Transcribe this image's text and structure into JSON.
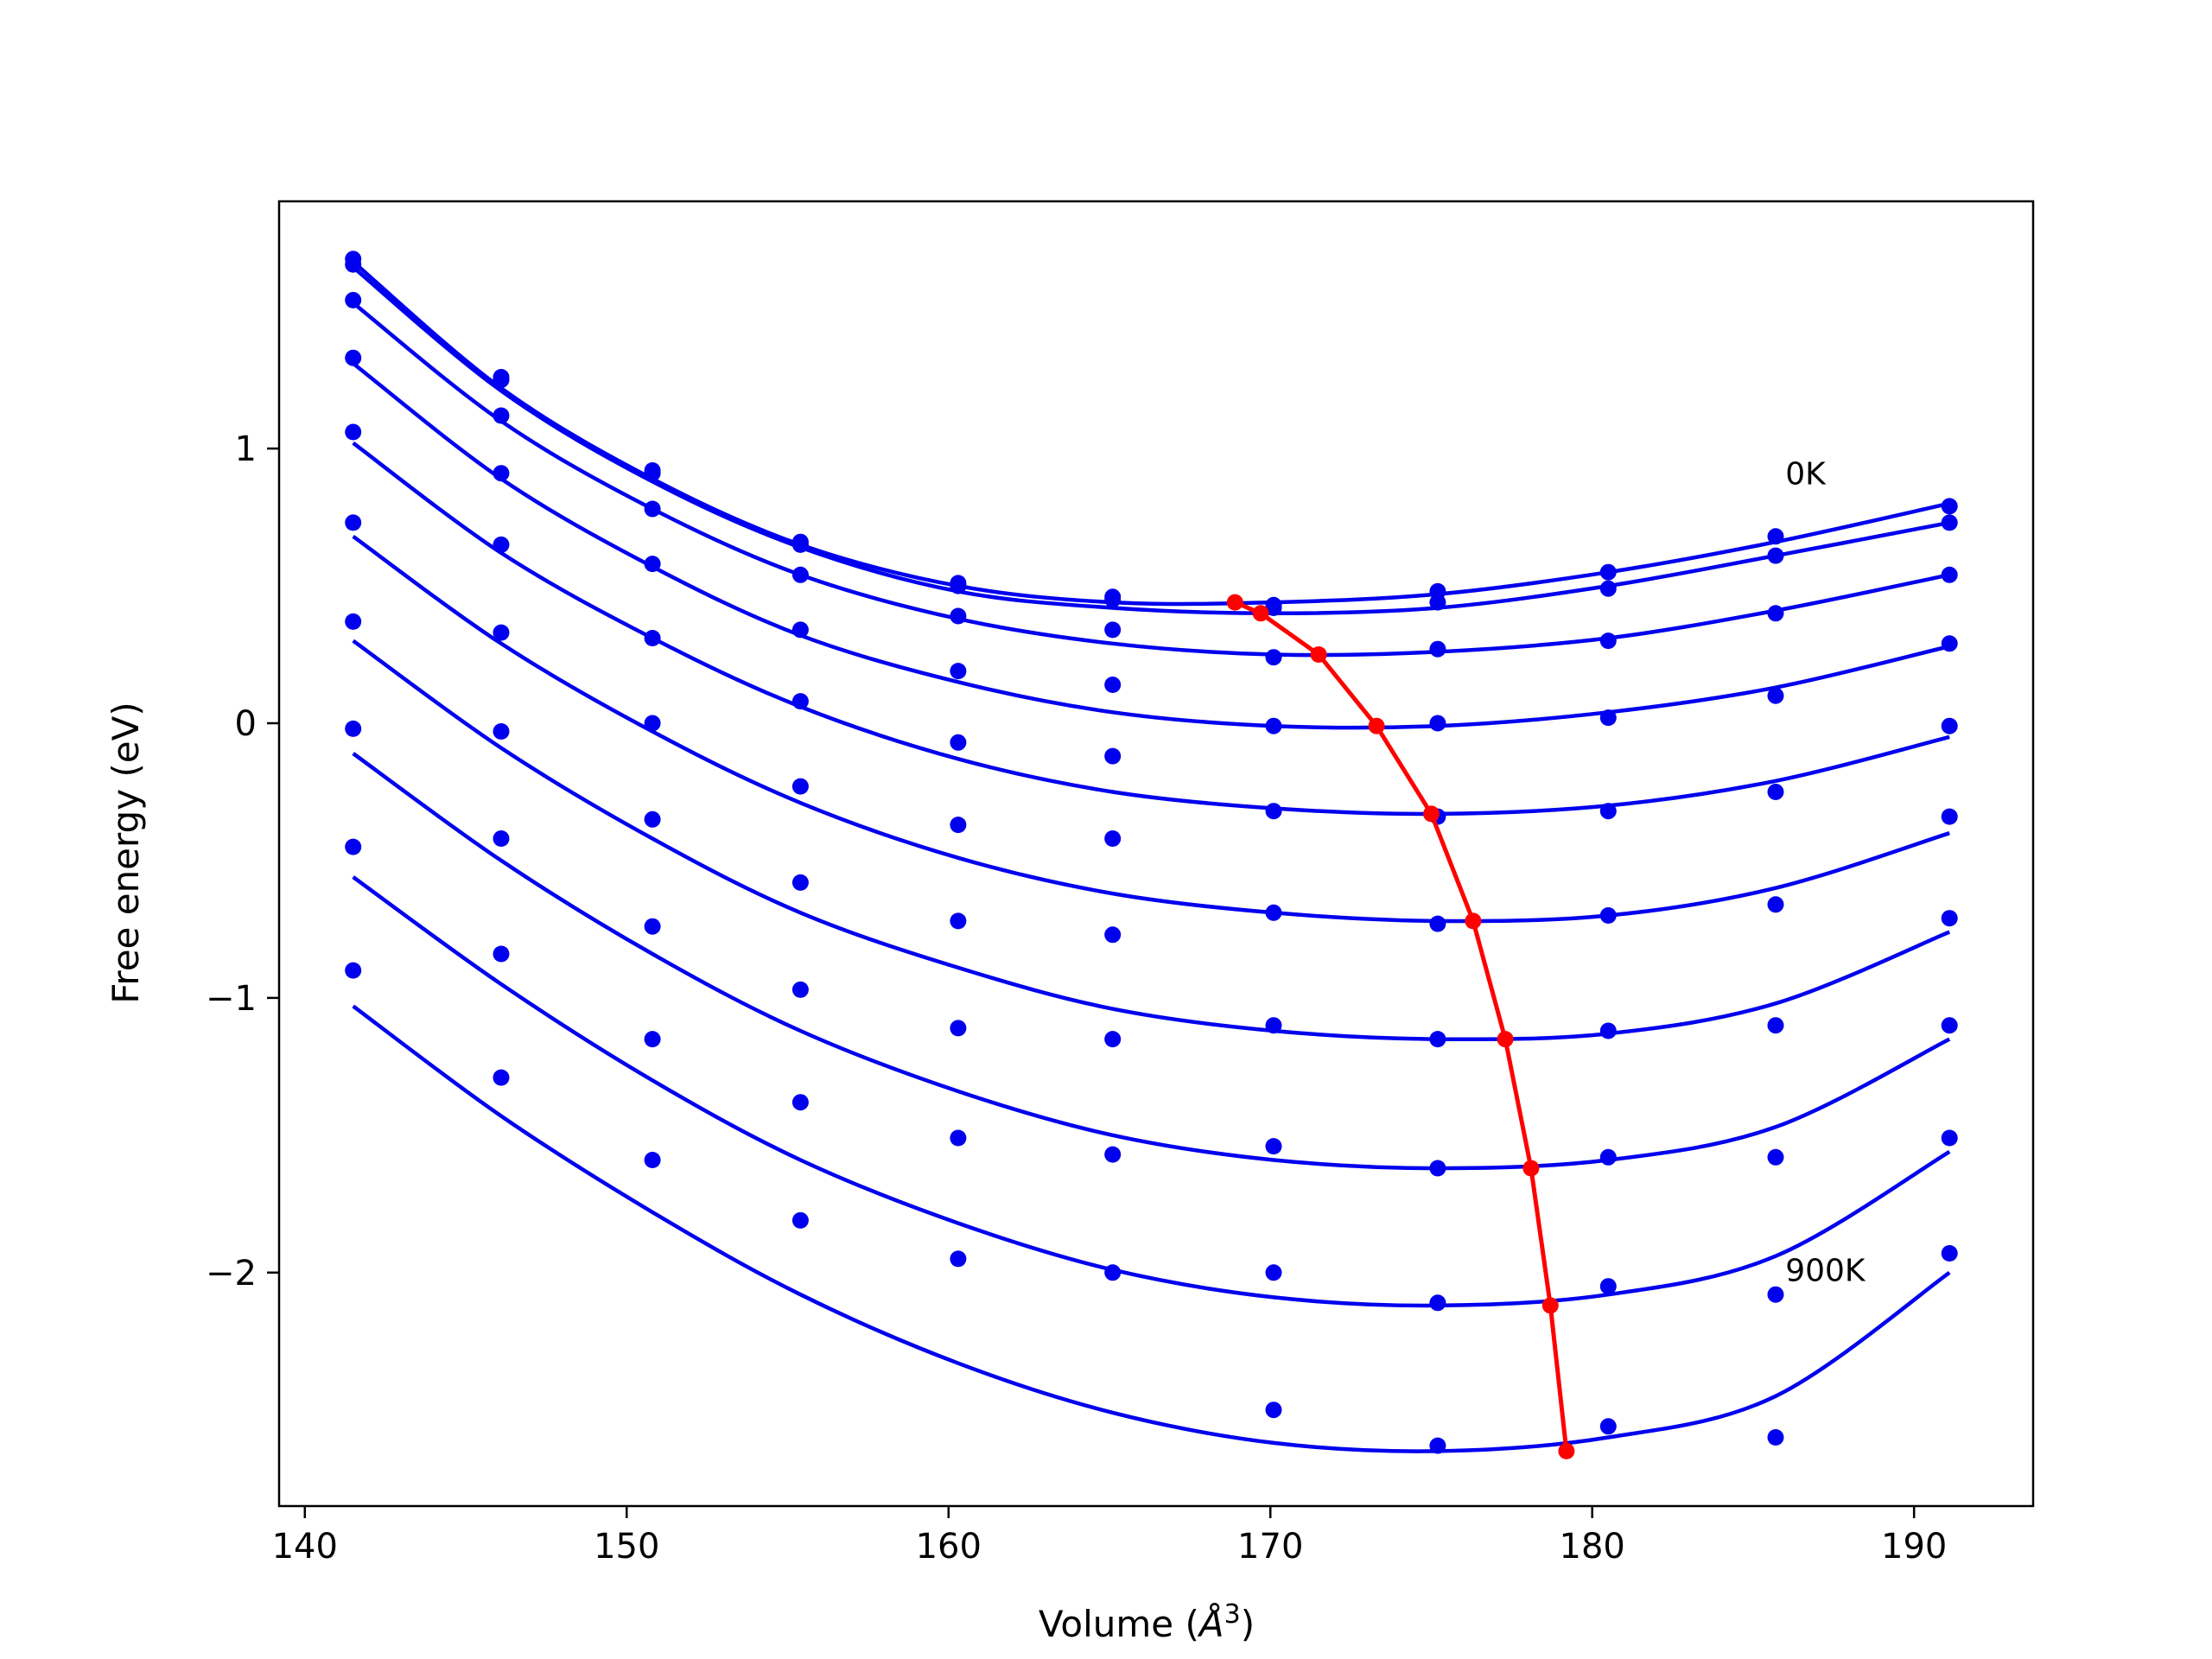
{
  "chart_data": {
    "type": "line",
    "xlabel": "Volume (",
    "xlabel_symbol": "Å",
    "xlabel_exp": "3",
    "xlabel_close": ")",
    "ylabel": "Free energy (eV)",
    "xlim": [
      139.2,
      193.7
    ],
    "ylim": [
      -2.85,
      1.9
    ],
    "xticks": [
      140,
      150,
      160,
      170,
      180,
      190
    ],
    "yticks": [
      -2,
      -1,
      0,
      1
    ],
    "ytick_labels": [
      "−2",
      "−1",
      "0",
      "1"
    ],
    "grid": false,
    "colors": {
      "series": "#0000ee",
      "minima": "#ff0000"
    },
    "annotations": [
      {
        "text": "0K",
        "x": 186.0,
        "y": 0.87
      },
      {
        "text": "900K",
        "x": 186.0,
        "y": -2.03
      }
    ],
    "volumes": [
      141.5,
      146.1,
      150.8,
      155.4,
      160.3,
      165.1,
      170.1,
      175.2,
      180.5,
      185.7,
      191.1
    ],
    "series": [
      {
        "points": [
          1.69,
          1.25,
          0.92,
          0.66,
          0.51,
          0.46,
          0.43,
          0.48,
          0.55,
          0.68,
          0.79
        ],
        "fit": [
          1.68,
          1.22,
          0.89,
          0.65,
          0.5,
          0.44,
          0.44,
          0.47,
          0.55,
          0.66,
          0.8
        ],
        "min": [
          168.9,
          0.44
        ]
      },
      {
        "points": [
          1.67,
          1.26,
          0.91,
          0.65,
          0.5,
          0.45,
          0.42,
          0.44,
          0.49,
          0.61,
          0.73
        ],
        "fit": [
          1.66,
          1.21,
          0.88,
          0.64,
          0.48,
          0.42,
          0.4,
          0.42,
          0.5,
          0.61,
          0.73
        ],
        "min": [
          169.7,
          0.4
        ]
      },
      {
        "points": [
          1.54,
          1.12,
          0.78,
          0.54,
          0.39,
          0.34,
          0.24,
          0.27,
          0.3,
          0.4,
          0.54
        ],
        "fit": [
          1.53,
          1.1,
          0.78,
          0.54,
          0.38,
          0.29,
          0.25,
          0.26,
          0.31,
          0.41,
          0.54
        ],
        "min": [
          171.5,
          0.25
        ]
      },
      {
        "points": [
          1.33,
          0.91,
          0.58,
          0.34,
          0.19,
          0.14,
          -0.01,
          0.0,
          0.02,
          0.1,
          0.29
        ],
        "fit": [
          1.31,
          0.89,
          0.57,
          0.32,
          0.15,
          0.04,
          -0.01,
          -0.01,
          0.04,
          0.13,
          0.28
        ],
        "min": [
          173.3,
          -0.01
        ]
      },
      {
        "points": [
          1.06,
          0.65,
          0.31,
          0.08,
          -0.07,
          -0.12,
          -0.32,
          -0.34,
          -0.32,
          -0.25,
          -0.01
        ],
        "fit": [
          1.02,
          0.62,
          0.31,
          0.06,
          -0.13,
          -0.25,
          -0.31,
          -0.33,
          -0.3,
          -0.21,
          -0.05
        ],
        "min": [
          175.0,
          -0.33
        ]
      },
      {
        "points": [
          0.73,
          0.33,
          0.0,
          -0.23,
          -0.37,
          -0.42,
          -0.69,
          -0.73,
          -0.7,
          -0.66,
          -0.34
        ],
        "fit": [
          0.68,
          0.29,
          -0.03,
          -0.29,
          -0.49,
          -0.62,
          -0.69,
          -0.72,
          -0.7,
          -0.6,
          -0.4
        ],
        "min": [
          176.3,
          -0.72
        ]
      },
      {
        "points": [
          0.37,
          -0.03,
          -0.35,
          -0.58,
          -0.72,
          -0.77,
          -1.1,
          -1.15,
          -1.12,
          -1.1,
          -0.71
        ],
        "fit": [
          0.3,
          -0.09,
          -0.42,
          -0.69,
          -0.89,
          -1.04,
          -1.12,
          -1.15,
          -1.13,
          -1.02,
          -0.76
        ],
        "min": [
          177.3,
          -1.15
        ]
      },
      {
        "points": [
          -0.02,
          -0.42,
          -0.74,
          -0.97,
          -1.11,
          -1.15,
          -1.54,
          -1.62,
          -1.58,
          -1.58,
          -1.1
        ],
        "fit": [
          -0.11,
          -0.5,
          -0.84,
          -1.12,
          -1.34,
          -1.5,
          -1.59,
          -1.62,
          -1.59,
          -1.47,
          -1.15
        ],
        "min": [
          178.1,
          -1.62
        ]
      },
      {
        "points": [
          -0.45,
          -0.84,
          -1.15,
          -1.38,
          -1.51,
          -1.57,
          -2.0,
          -2.11,
          -2.05,
          -2.08,
          -1.51
        ],
        "fit": [
          -0.56,
          -0.95,
          -1.3,
          -1.59,
          -1.82,
          -1.99,
          -2.09,
          -2.12,
          -2.08,
          -1.94,
          -1.56
        ],
        "min": [
          178.7,
          -2.12
        ]
      },
      {
        "points": [
          -0.9,
          -1.29,
          -1.59,
          -1.81,
          -1.95,
          -2.0,
          -2.5,
          -2.63,
          -2.56,
          -2.6,
          -1.93
        ],
        "fit": [
          -1.03,
          -1.43,
          -1.78,
          -2.08,
          -2.33,
          -2.51,
          -2.62,
          -2.65,
          -2.6,
          -2.45,
          -2.0
        ],
        "min": [
          179.2,
          -2.65
        ]
      }
    ]
  }
}
